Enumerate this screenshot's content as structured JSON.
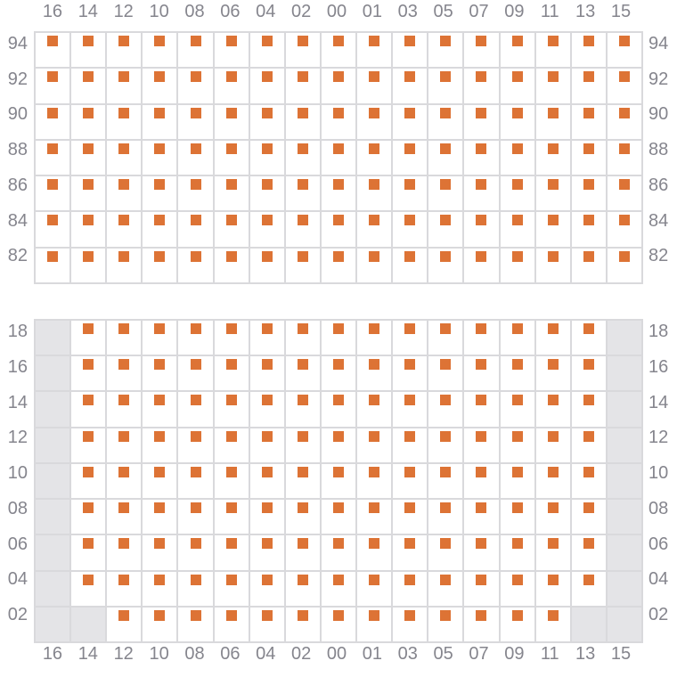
{
  "colors": {
    "marker": "#dd7335",
    "grid_line": "#d9d9dc",
    "disabled_cell_bg": "#e4e4e7",
    "cell_bg": "#ffffff",
    "label_text": "#85858d",
    "page_bg": "#ffffff"
  },
  "column_labels": [
    "16",
    "14",
    "12",
    "10",
    "08",
    "06",
    "04",
    "02",
    "00",
    "01",
    "03",
    "05",
    "07",
    "09",
    "11",
    "13",
    "15"
  ],
  "top_panel": {
    "row_labels": [
      "94",
      "92",
      "90",
      "88",
      "86",
      "84",
      "82"
    ],
    "rows": [
      "11111111111111111",
      "11111111111111111",
      "11111111111111111",
      "11111111111111111",
      "11111111111111111",
      "11111111111111111",
      "11111111111111111"
    ]
  },
  "bottom_panel": {
    "row_labels": [
      "18",
      "16",
      "14",
      "12",
      "10",
      "08",
      "06",
      "04",
      "02"
    ],
    "rows": [
      "01111111111111110",
      "01111111111111110",
      "01111111111111110",
      "01111111111111110",
      "01111111111111110",
      "01111111111111110",
      "01111111111111110",
      "01111111111111110",
      "00111111111111100"
    ]
  }
}
